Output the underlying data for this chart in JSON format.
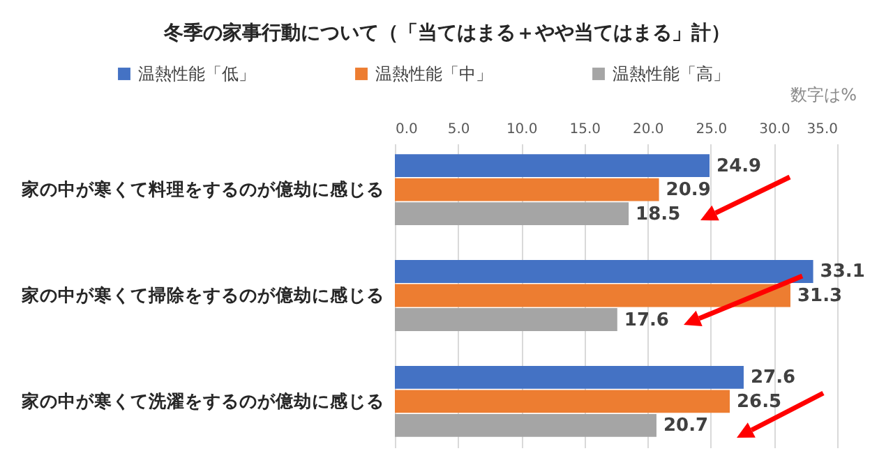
{
  "chart_data": {
    "type": "bar",
    "orientation": "horizontal",
    "title": "冬季の家事行動について（「当てはまる＋やや当てはまる」計）",
    "categories": [
      "家の中が寒くて料理をするのが億劫に感じる",
      "家の中が寒くて掃除をするのが億劫に感じる",
      "家の中が寒くて洗濯をするのが億劫に感じる"
    ],
    "series": [
      {
        "name": "温熱性能「低」",
        "color": "#4472c4",
        "values": [
          24.9,
          33.1,
          27.6
        ]
      },
      {
        "name": "温熱性能「中」",
        "color": "#ed7d31",
        "values": [
          20.9,
          31.3,
          26.5
        ]
      },
      {
        "name": "温熱性能「高」",
        "color": "#a5a5a5",
        "values": [
          18.5,
          17.6,
          20.7
        ]
      }
    ],
    "xlim": [
      0,
      35
    ],
    "xticks": [
      {
        "value": 0,
        "label": "0.0"
      },
      {
        "value": 5,
        "label": "5.0"
      },
      {
        "value": 10,
        "label": "10.0"
      },
      {
        "value": 15,
        "label": "15.0"
      },
      {
        "value": 20,
        "label": "20.0"
      },
      {
        "value": 25,
        "label": "25.0"
      },
      {
        "value": 30,
        "label": "30.0"
      },
      {
        "value": 35,
        "label": "35.0"
      }
    ],
    "grid": true,
    "legend": "top left",
    "data_labels": true,
    "annotations": [
      "数字は%"
    ]
  }
}
